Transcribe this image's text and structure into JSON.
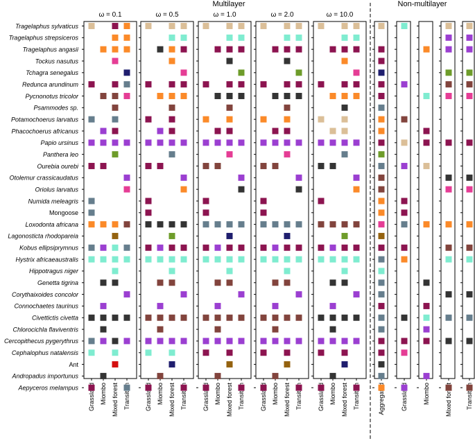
{
  "chart_data": {
    "type": "heatmap",
    "group_titles": {
      "multilayer": "Multilayer",
      "non_multilayer": "Non-multilayer"
    },
    "omega_label": "ω",
    "species": [
      "Tragelaphus sylvaticus",
      "Tragelaphus strepsiceros",
      "Tragelaphus angasii",
      "Tockus nasutus",
      "Tchagra senegalus",
      "Redunca arundinum",
      "Pycnonotus tricolor",
      "Psammodes sp.",
      "Potamochoerus larvatus",
      "Phacochoerus africanus",
      "Papio ursinus",
      "Panthera leo",
      "Ourebia ourebi",
      "Otolemur crassicaudatus",
      "Oriolus larvatus",
      "Numida meleagris",
      "Mongoose",
      "Loxodonta africana",
      "Lagonosticta rhodopareia",
      "Kobus ellipsiprymnus",
      "Hystrix africaeaustralis",
      "Hippotragus niger",
      "Genetta tigrina",
      "Corythaixoides concolor",
      "Connochaetes taurinus",
      "Civettictis civetta",
      "Chlorocichla flaviventris",
      "Cercopithecus pygerythrus",
      "Cephalophus natalensis",
      "Ant",
      "Andropadus importunus",
      "Aepyceros melampus"
    ],
    "non_italic_species": [
      "Mongoose",
      "Ant"
    ],
    "habitats": [
      "Grassland",
      "Miombo",
      "Mixed forest",
      "Transition"
    ],
    "non_multilayer_columns": [
      "Aggregated",
      "Grassland",
      "Miombo",
      "Mixed forest",
      "Transition"
    ],
    "palette": {
      "T": "#dbbf98",
      "C": "#7fecd0",
      "O": "#fb8a29",
      "M": "#8c1450",
      "D": "#343434",
      "P": "#9b3fd1",
      "N": "#1f1e6e",
      "S": "#667e8d",
      "G": "#6e9c2a",
      "K": "#e53d95",
      "B": "#82443d",
      "R": "#d40f0f",
      "Y": "#94620f"
    },
    "panels": [
      {
        "label": "ω = 0.1",
        "rows": [
          "T.MO",
          "..OO",
          ".OOO",
          "..K.",
          "...N",
          "M.MS",
          ".BBK",
          "..B.",
          "S.S.",
          ".PM.",
          "PPPP",
          "..G.",
          "MM..",
          "...P",
          "...K",
          "S...",
          "S...",
          "OOOB",
          "..Y.",
          "SPCS",
          "CCCC",
          "..C.",
          ".DD.",
          "...P",
          ".P..",
          "DDDD",
          ".D..",
          "SPDP",
          "C.C.",
          "..R.",
          ".D..",
          "M..S"
        ]
      },
      {
        "label": "ω = 0.5",
        "rows": [
          "T.TT",
          "..CC",
          ".DOM",
          "..O.",
          "...K",
          "M.MM",
          ".OOO",
          "..B.",
          "M.M.",
          ".PM.",
          "PPPP",
          "..S.",
          "MM..",
          "...P",
          "...O",
          "M...",
          "M...",
          "DDDD",
          "..G.",
          "MPMM",
          "CCCC",
          "..C.",
          ".BB.",
          "...P",
          ".P..",
          "BBBB",
          ".B..",
          "PPPP",
          "C.C.",
          "..N.",
          ".B..",
          "M..M"
        ]
      },
      {
        "label": "ω = 1.0",
        "rows": [
          "T.TT",
          "..CC",
          ".MMM",
          "..D.",
          "...G",
          "M.MM",
          ".DDD",
          "..B.",
          "O.O.",
          ".MM.",
          "PPPP",
          "..K.",
          "BB..",
          "...P",
          "...D",
          "M...",
          "M...",
          "SSSS",
          "..N.",
          "MPMM",
          "CCCC",
          "..C.",
          ".BB.",
          "...P",
          ".P..",
          "BBBB",
          ".B..",
          "PPPP",
          "M.M.",
          "..Y.",
          ".B..",
          "M..M"
        ]
      },
      {
        "label": "ω = 2.0",
        "rows": [
          "T.TT",
          "..CC",
          ".MMM",
          "..D.",
          "...G",
          "M.MM",
          ".DDD",
          "..B.",
          "O.O.",
          ".MM.",
          "PPPP",
          "..K.",
          "BB..",
          "...P",
          "...D",
          "M...",
          "M...",
          "SSSS",
          "..N.",
          "MPMM",
          "CCCC",
          "..C.",
          ".BB.",
          "...P",
          ".P..",
          "BBBB",
          ".B..",
          "PPPP",
          "M.M.",
          "..Y.",
          ".B..",
          "M..M"
        ]
      },
      {
        "label": "ω = 10.0",
        "rows": [
          "T.TT",
          "..CC",
          ".MMM",
          "..O.",
          "...K",
          "M.MM",
          ".OOO",
          "..D.",
          "T.T.",
          ".TT.",
          "PPPP",
          "..S.",
          "DD..",
          "...P",
          "...O",
          "M...",
          "....",
          "BBBB",
          "..G.",
          "MPMM",
          "CCCC",
          "..C.",
          ".DD.",
          "...P",
          ".P..",
          "DDDD",
          ".D..",
          "PPPP",
          "M.M.",
          "..N.",
          ".D..",
          "M..M"
        ]
      }
    ],
    "non_multilayer_rows": [
      "TC.TT",
      "...PP",
      "M.OPP",
      "M....",
      "N..GG",
      "MP.BB",
      "M.CKK",
      "S....",
      "OB...",
      "O.M..",
      "MTMMM",
      "G....",
      "SPT..",
      "B..DD",
      "B..KK",
      "OM...",
      "OM...",
      "KSOOO",
      "Y....",
      "MM.BB",
      "SO.CC",
      "C....",
      "S.D..",
      "S..DD",
      "M.M..",
      "SDCSS",
      "S.P..",
      "MMMDD",
      "MK...",
      "D....",
      "S.P..",
      "OP.BB"
    ]
  }
}
